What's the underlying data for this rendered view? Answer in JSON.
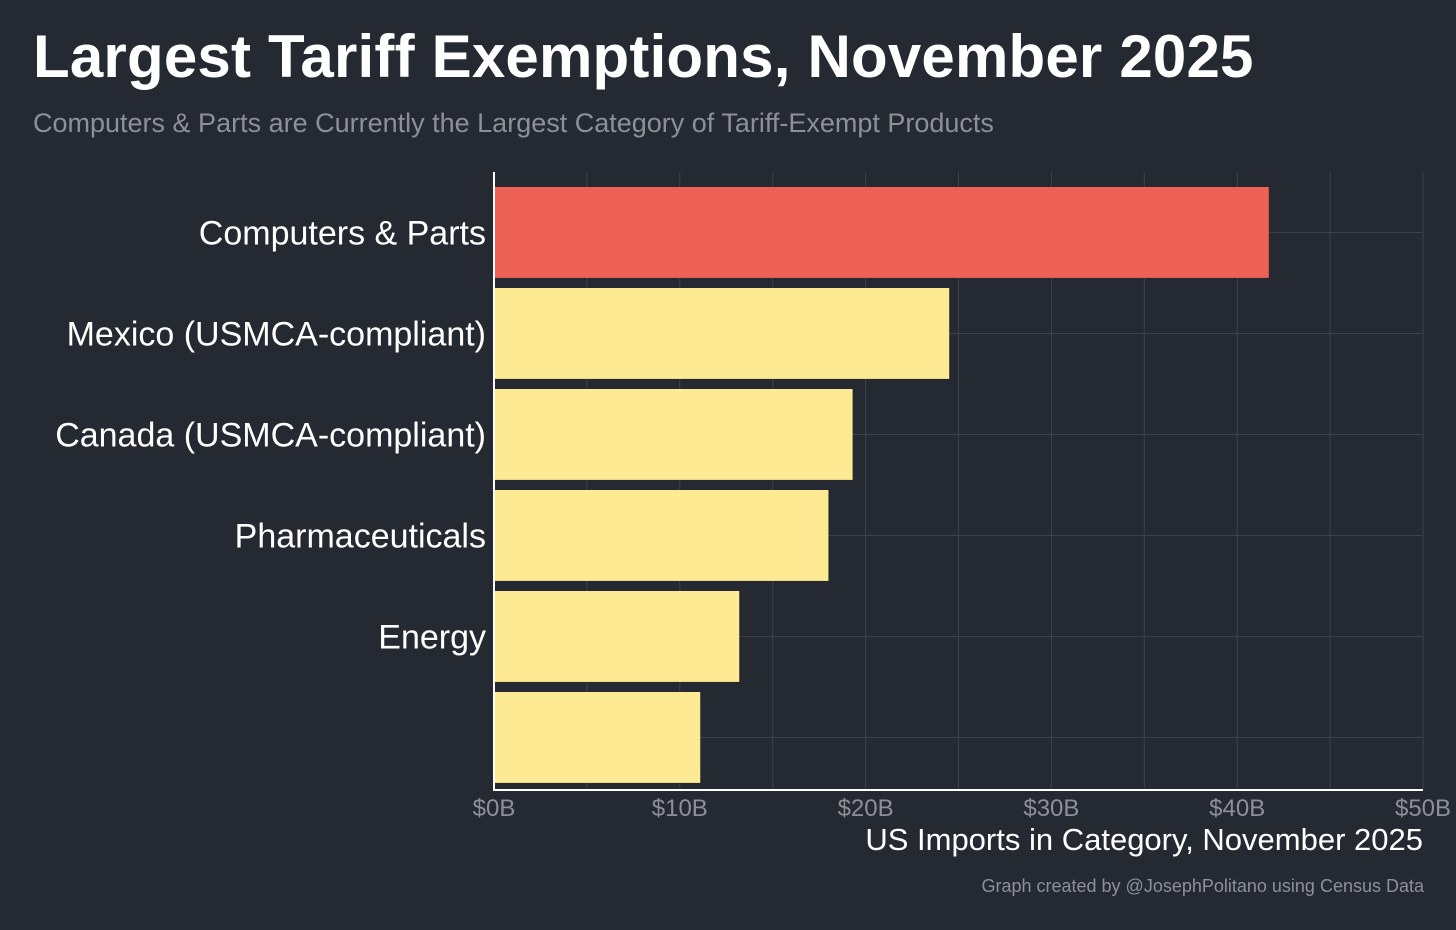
{
  "header": {
    "title": "Largest Tariff Exemptions, November 2025",
    "subtitle": "Computers & Parts are Currently the Largest Category of Tariff-Exempt Products"
  },
  "footer": {
    "credit": "Graph created by @JosephPolitano using Census Data"
  },
  "colors": {
    "background": "#252931",
    "highlight_bar": "#ee6256",
    "bar": "#feea92",
    "grid": "#3d414a",
    "axis": "#ffffff"
  },
  "chart_data": {
    "type": "bar",
    "orientation": "horizontal",
    "title": "Largest Tariff Exemptions, November 2025",
    "subtitle": "Computers & Parts are Currently the Largest Category of Tariff-Exempt Products",
    "xlabel": "US Imports in Category, November 2025",
    "ylabel": "",
    "categories": [
      "Computers & Parts",
      "Mexico (USMCA-compliant)",
      "Canada (USMCA-compliant)",
      "Pharmaceuticals",
      "Energy",
      ""
    ],
    "values": [
      41.7,
      24.5,
      19.3,
      18.0,
      13.2,
      11.1
    ],
    "units": "billions of US dollars",
    "highlighted": [
      "Computers & Parts"
    ],
    "xlim": [
      0,
      50
    ],
    "xticks": [
      0,
      10,
      20,
      30,
      40,
      50
    ],
    "xtick_labels": [
      "$0B",
      "$10B",
      "$20B",
      "$30B",
      "$40B",
      "$50B"
    ],
    "grid": true,
    "legend": "none"
  }
}
